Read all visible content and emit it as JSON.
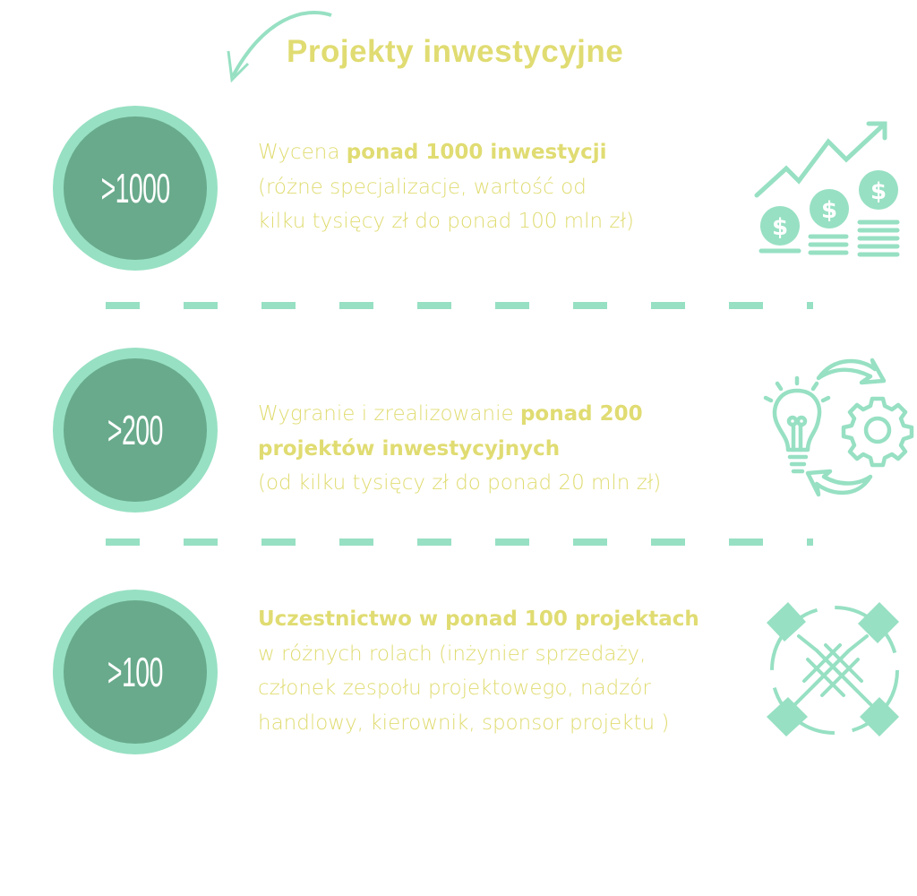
{
  "title": "Projekty inwestycyjne",
  "colors": {
    "mint": "#97e0c3",
    "dark_green": "#68aa8b",
    "yellow": "#e0dc72"
  },
  "items": [
    {
      "badge": ">1000",
      "lines": [
        {
          "normal": "Wycena ",
          "bold": "ponad 1000 inwestycji",
          "after": ""
        },
        {
          "normal": "(różne specjalizacje, wartość od",
          "bold": "",
          "after": ""
        },
        {
          "normal": "kilku tysięcy zł do ponad 100 mln zł)",
          "bold": "",
          "after": ""
        }
      ],
      "icon": "money-growth-chart-icon"
    },
    {
      "badge": ">200",
      "lines": [
        {
          "normal": "Wygranie i zrealizowanie ",
          "bold": "ponad 200",
          "after": ""
        },
        {
          "normal": "",
          "bold": "projektów inwestycyjnych",
          "after": ""
        },
        {
          "normal": "(od kilku tysięcy zł do ponad 20 mln zł)",
          "bold": "",
          "after": ""
        }
      ],
      "icon": "idea-gear-cycle-icon"
    },
    {
      "badge": ">100",
      "lines": [
        {
          "normal": "",
          "bold": "Uczestnictwo w ponad 100 projektach",
          "after": ""
        },
        {
          "normal": "w różnych rolach (inżynier sprzedaży,",
          "bold": "",
          "after": ""
        },
        {
          "normal": "członek zespołu projektowego, nadzór",
          "bold": "",
          "after": ""
        },
        {
          "normal": "handlowy, kierownik, sponsor projektu )",
          "bold": "",
          "after": ""
        }
      ],
      "icon": "teamwork-hands-icon"
    }
  ]
}
